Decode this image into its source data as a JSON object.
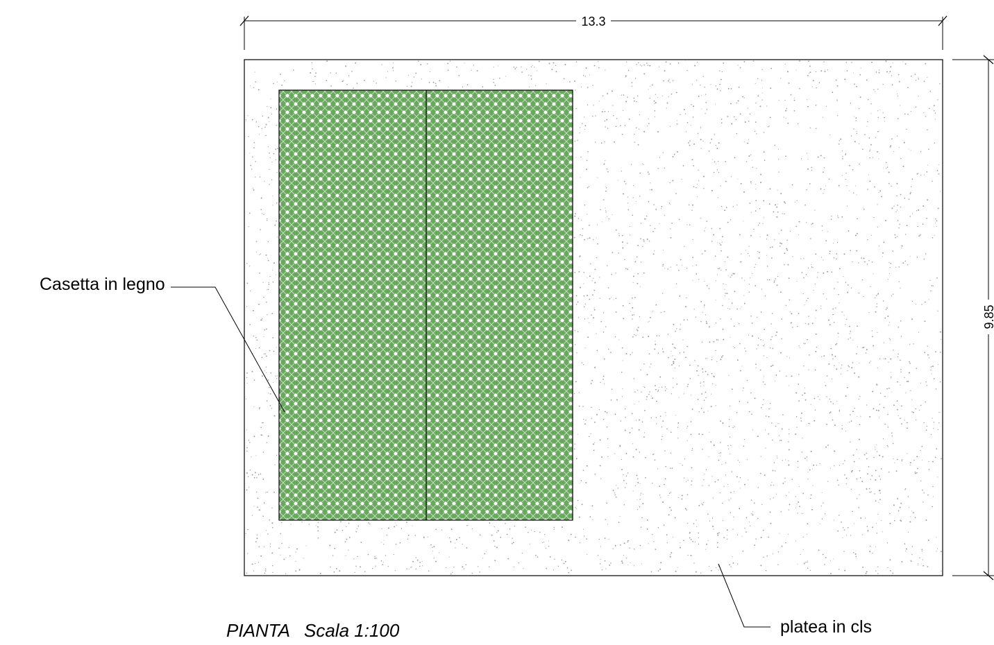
{
  "dimensions": {
    "width_label": "13.3",
    "height_label": "9.85"
  },
  "callouts": {
    "cabin": "Casetta in legno",
    "slab": "platea in cls"
  },
  "title": {
    "view": "PIANTA",
    "scale": "Scala 1:100"
  },
  "colors": {
    "cabin_fill": "#6aa860",
    "line": "#000000",
    "concrete_dot": "#9a9a9a"
  }
}
